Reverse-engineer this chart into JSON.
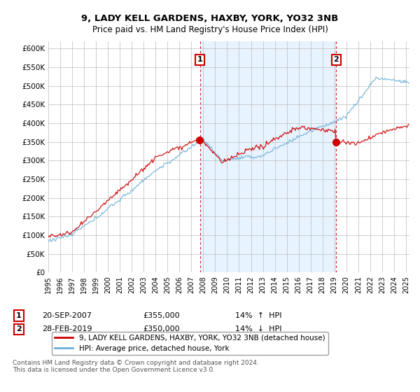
{
  "title": "9, LADY KELL GARDENS, HAXBY, YORK, YO32 3NB",
  "subtitle": "Price paid vs. HM Land Registry's House Price Index (HPI)",
  "ylim": [
    0,
    620000
  ],
  "xlim_start": 1995.0,
  "xlim_end": 2025.3,
  "sale1_date": 2007.72,
  "sale1_price": 355000,
  "sale2_date": 2019.16,
  "sale2_price": 350000,
  "red_color": "#cc0000",
  "blue_color": "#6baed6",
  "shade_color": "#ddeeff",
  "legend_line1": "9, LADY KELL GARDENS, HAXBY, YORK, YO32 3NB (detached house)",
  "legend_line2": "HPI: Average price, detached house, York",
  "footnote": "Contains HM Land Registry data © Crown copyright and database right 2024.\nThis data is licensed under the Open Government Licence v3.0.",
  "background_color": "#ffffff"
}
